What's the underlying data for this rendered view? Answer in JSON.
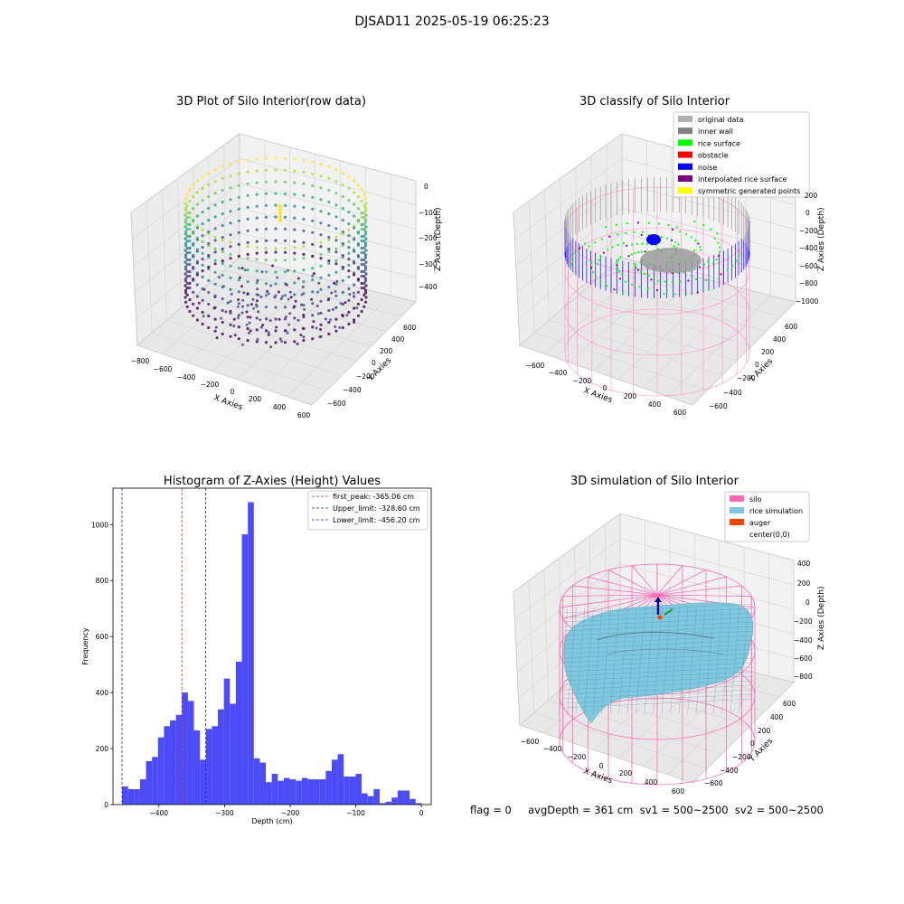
{
  "suptitle": "DJSAD11 2025-05-19 06:25:23",
  "status_text": "flag = 0     avgDepth = 361 cm  sv1 = 500~2500  sv2 = 500~2500",
  "colors": {
    "hist_bar": "#4b4bf8",
    "peak_line": "#d62728",
    "limit_line": "#1f1fb4",
    "silo": "#ff69b4",
    "rice": "#7fc8e0",
    "auger": "#ff4500"
  },
  "chart_data": [
    {
      "type": "scatter3d",
      "title": "3D Plot of Silo Interior(row data)",
      "xlabel": "X Axies",
      "ylabel": "Y Axies",
      "zlabel": "Z Axies (Depth)",
      "xticks": [
        "−800",
        "−600",
        "−400",
        "−200",
        "0",
        "200",
        "400",
        "600"
      ],
      "yticks": [
        "−600",
        "−400",
        "−200",
        "0",
        "200",
        "400",
        "600"
      ],
      "zticks": [
        "0",
        "−100",
        "−200",
        "−300",
        "−400"
      ],
      "colormap": "viridis"
    },
    {
      "type": "scatter3d",
      "title": "3D classify of Silo Interior",
      "xlabel": "X Axies",
      "ylabel": "Y Axies",
      "zlabel": "Z Axies (Depth)",
      "xticks": [
        "−600",
        "−400",
        "−200",
        "0",
        "200",
        "400",
        "600"
      ],
      "yticks": [
        "−600",
        "−400",
        "−200",
        "0",
        "200",
        "400",
        "600"
      ],
      "zticks": [
        "200",
        "0",
        "−200",
        "−400",
        "−600",
        "−800",
        "−1000"
      ],
      "legend_position": "top-right",
      "legend": [
        {
          "label": "original data",
          "color": "#b0b0b0"
        },
        {
          "label": "inner wall",
          "color": "#808080"
        },
        {
          "label": "rice surface",
          "color": "#00ff00"
        },
        {
          "label": "obstacle",
          "color": "#ff0000"
        },
        {
          "label": "noise",
          "color": "#0000ff"
        },
        {
          "label": "interpolated rice surface",
          "color": "#800080"
        },
        {
          "label": "symmetric generated points",
          "color": "#ffff00"
        }
      ]
    },
    {
      "type": "bar",
      "title": "Histogram of Z-Axies (Height) Values",
      "xlabel": "Depth (cm)",
      "ylabel": "Frequency",
      "xlim": [
        -470,
        15
      ],
      "ylim": [
        0,
        1130
      ],
      "xticks": [
        -400,
        -300,
        -200,
        -100,
        0
      ],
      "yticks": [
        0,
        200,
        400,
        600,
        800,
        1000
      ],
      "bin_start": -456.2,
      "bin_width": 9.13,
      "values": [
        65,
        55,
        55,
        90,
        155,
        170,
        240,
        280,
        300,
        320,
        400,
        370,
        265,
        160,
        270,
        280,
        340,
        450,
        360,
        510,
        965,
        1080,
        165,
        150,
        80,
        110,
        85,
        95,
        90,
        85,
        95,
        90,
        90,
        90,
        120,
        160,
        180,
        100,
        100,
        110,
        40,
        30,
        55,
        5,
        10,
        25,
        50,
        50,
        20,
        5
      ],
      "legend_position": "top-right",
      "lines": [
        {
          "label": "first_peak: -365.06 cm",
          "x": -365.06,
          "color": "#d62728"
        },
        {
          "label": "Upper_limit: -328.60 cm",
          "x": -328.6,
          "color": "#1f1fb4"
        },
        {
          "label": "Lower_limit: -456.20 cm",
          "x": -456.2,
          "color": "#1f1fb4"
        }
      ]
    },
    {
      "type": "surface3d",
      "title": "3D simulation of Silo Interior",
      "xlabel": "X Axies",
      "ylabel": "Y Axies",
      "zlabel": "Z Axies (Depth)",
      "xticks": [
        "−600",
        "−400",
        "−200",
        "0",
        "200",
        "400",
        "600"
      ],
      "yticks": [
        "−600",
        "−400",
        "−200",
        "0",
        "200",
        "400",
        "600"
      ],
      "zticks": [
        "400",
        "200",
        "0",
        "−200",
        "−400",
        "−600",
        "−800"
      ],
      "legend_position": "top-right",
      "legend": [
        {
          "label": "silo",
          "color": "#ff69b4"
        },
        {
          "label": "rice simulation",
          "color": "#7fc8e0"
        },
        {
          "label": "auger",
          "color": "#ff4500"
        },
        {
          "label": "center(0,0)",
          "color": ""
        }
      ]
    }
  ]
}
